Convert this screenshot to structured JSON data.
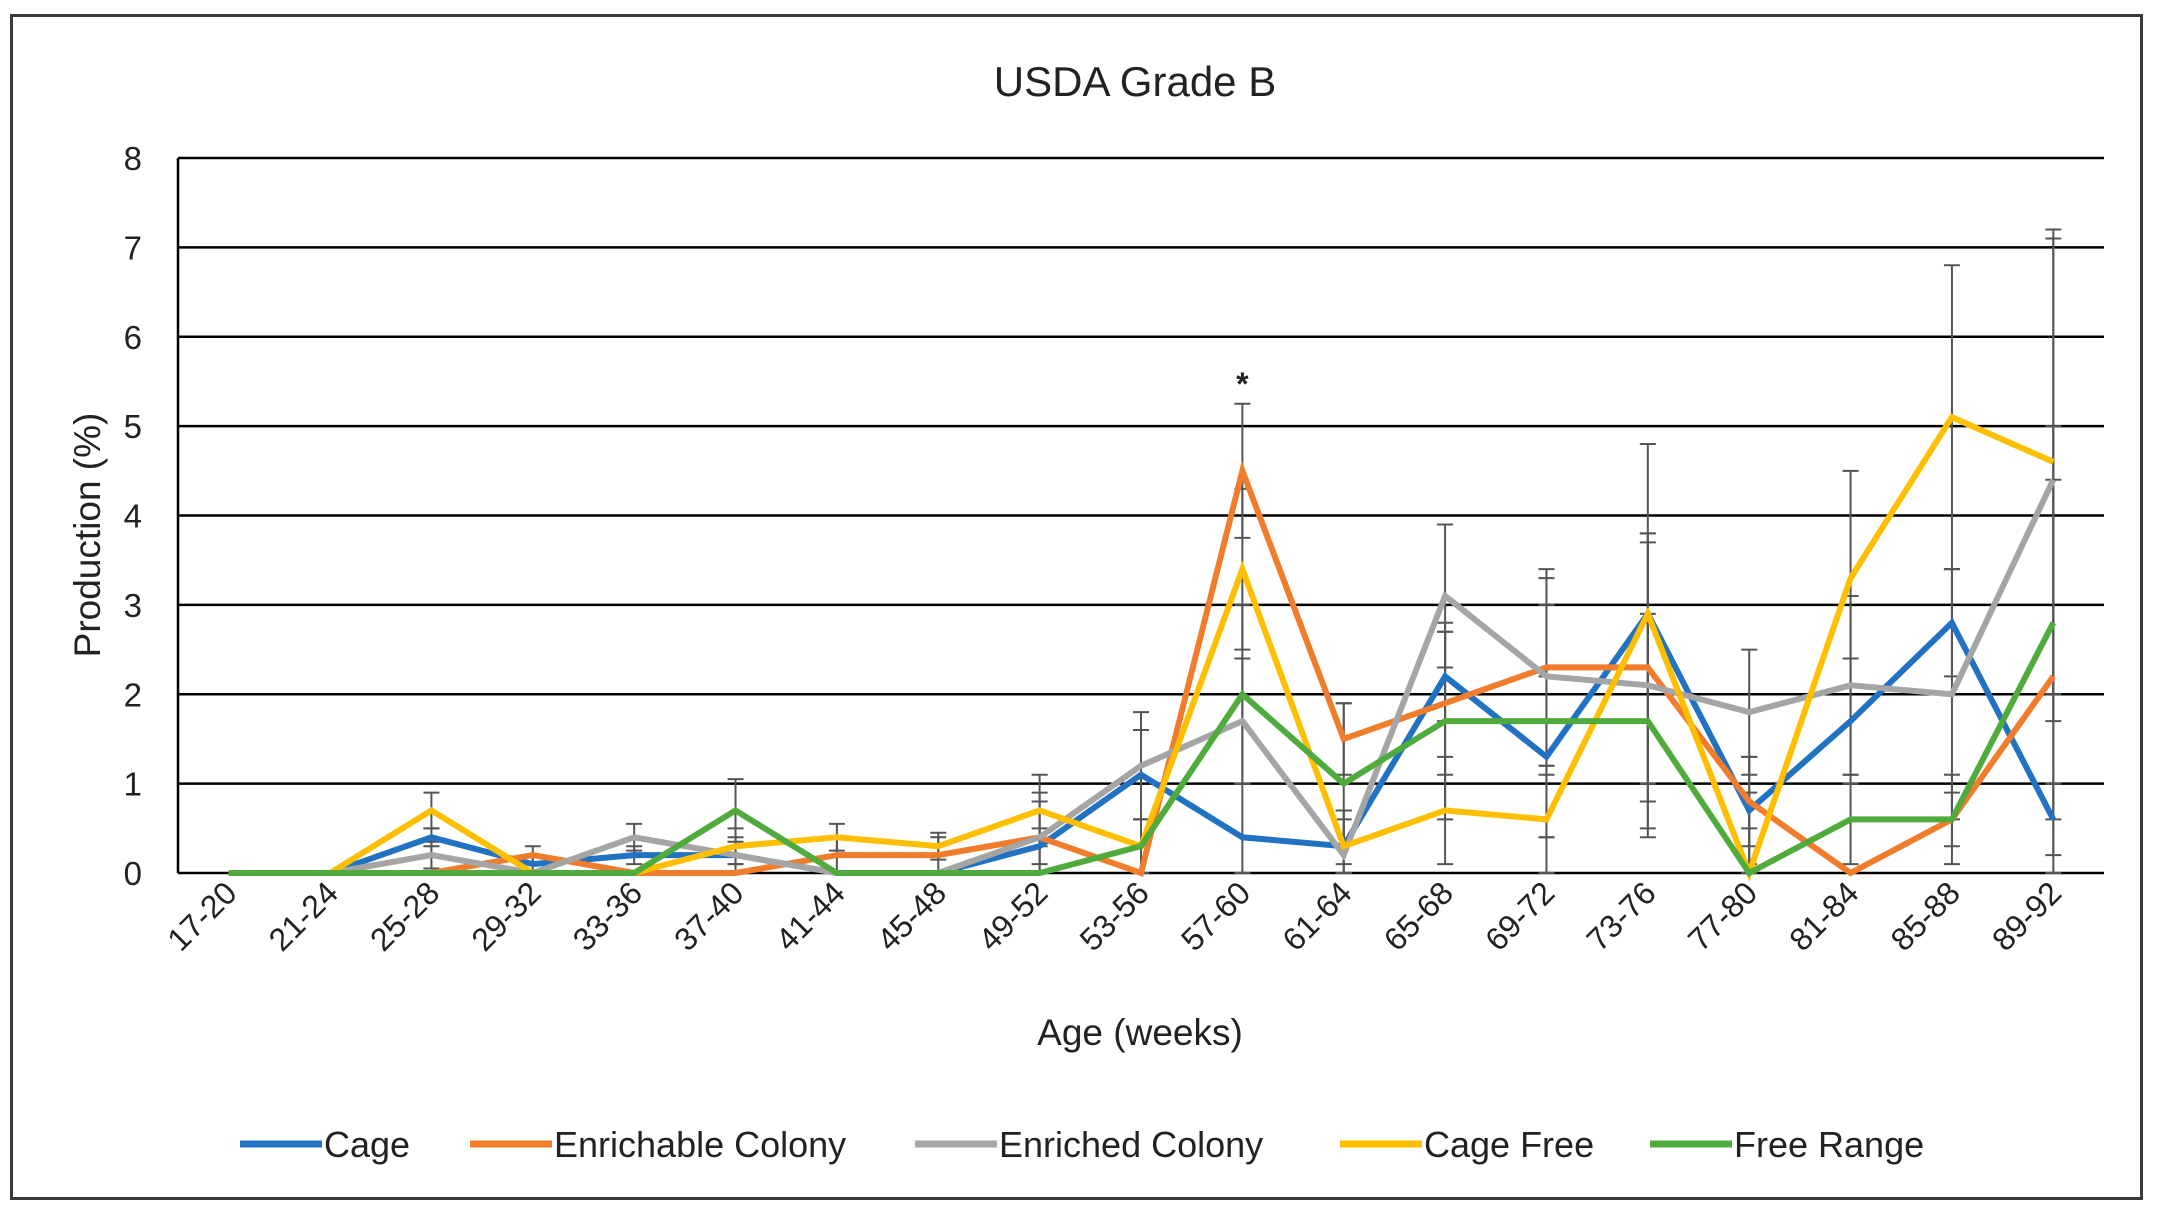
{
  "chart_data": {
    "type": "line",
    "title": "USDA Grade B",
    "xlabel": "Age (weeks)",
    "ylabel": "Production (%)",
    "ylim": [
      0,
      8
    ],
    "yticks": [
      0,
      1,
      2,
      3,
      4,
      5,
      6,
      7,
      8
    ],
    "grid": "horizontal",
    "legend_position": "bottom",
    "categories": [
      "17-20",
      "21-24",
      "25-28",
      "29-32",
      "33-36",
      "37-40",
      "41-44",
      "45-48",
      "49-52",
      "53-56",
      "57-60",
      "61-64",
      "65-68",
      "69-72",
      "73-76",
      "77-80",
      "81-84",
      "85-88",
      "89-92"
    ],
    "series": [
      {
        "name": "Cage",
        "color": "#2272c3",
        "values": [
          0,
          0,
          0.4,
          0.1,
          0.2,
          0.2,
          0,
          0,
          0.3,
          1.1,
          0.4,
          0.3,
          2.2,
          1.3,
          2.9,
          0.7,
          1.7,
          2.8,
          0.6
        ],
        "err": [
          0,
          0,
          0.1,
          0.1,
          0.1,
          0.1,
          0,
          0,
          0.2,
          0.5,
          0.6,
          0.4,
          0.5,
          0.9,
          0.8,
          0.6,
          0.7,
          0.6,
          0.4
        ]
      },
      {
        "name": "Enrichable Colony",
        "color": "#f07c2c",
        "values": [
          0,
          0,
          0,
          0.2,
          0,
          0,
          0.2,
          0.2,
          0.4,
          0,
          4.5,
          1.5,
          1.9,
          2.3,
          2.3,
          0.8,
          0,
          0.6,
          2.2
        ],
        "err": [
          0,
          0,
          0,
          0.1,
          0,
          0,
          0.2,
          0.2,
          0.4,
          0,
          0.75,
          0.4,
          0.8,
          1.1,
          1.5,
          0.5,
          0,
          0.3,
          2.2
        ]
      },
      {
        "name": "Enriched Colony",
        "color": "#a5a5a5",
        "values": [
          0,
          0,
          0.2,
          0,
          0.4,
          0.2,
          0,
          0,
          0.4,
          1.2,
          1.7,
          0.2,
          3.1,
          2.2,
          2.1,
          1.8,
          2.1,
          2.0,
          4.4
        ],
        "err": [
          0,
          0,
          0.15,
          0,
          0.15,
          0.2,
          0,
          0,
          0.5,
          0.6,
          0.7,
          0.4,
          0.8,
          1.1,
          1.7,
          0.7,
          1.0,
          1.4,
          2.7
        ]
      },
      {
        "name": "Cage Free",
        "color": "#fdbf00",
        "values": [
          0,
          0,
          0.7,
          0,
          0,
          0.3,
          0.4,
          0.3,
          0.7,
          0.3,
          3.4,
          0.3,
          0.7,
          0.6,
          2.9,
          0,
          3.3,
          5.1,
          4.6
        ],
        "err": [
          0,
          0,
          0.2,
          0,
          0,
          0.2,
          0.15,
          0.15,
          0.4,
          0.3,
          0.9,
          0.4,
          0.6,
          0.6,
          1.9,
          0.9,
          1.2,
          1.7,
          2.6
        ]
      },
      {
        "name": "Free Range",
        "color": "#4fab3c",
        "values": [
          0,
          0,
          0,
          0,
          0,
          0.7,
          0,
          0,
          0,
          0.3,
          2.0,
          1.0,
          1.7,
          1.7,
          1.7,
          0,
          0.6,
          0.6,
          2.8
        ],
        "err": [
          0,
          0,
          0,
          0,
          0,
          0.35,
          0,
          0,
          0,
          0.3,
          1.0,
          0.9,
          1.1,
          1.3,
          1.2,
          0.5,
          0.5,
          0.5,
          2.2
        ]
      }
    ],
    "annotations": [
      {
        "category": "57-60",
        "text": "*"
      }
    ]
  }
}
